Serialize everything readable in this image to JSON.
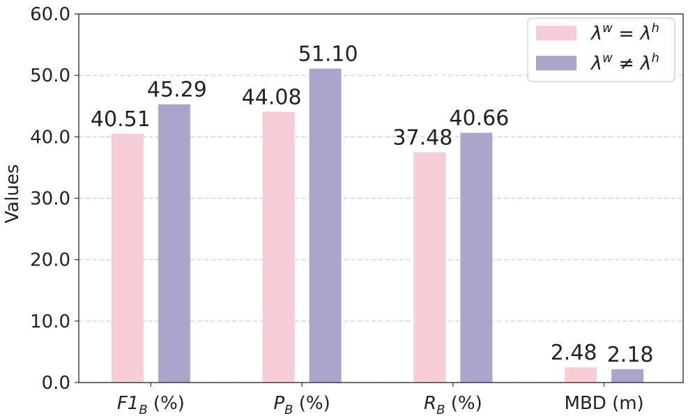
{
  "chart_data": {
    "type": "bar",
    "title": "",
    "xlabel": "",
    "ylabel": "Values",
    "ylim": [
      0,
      60
    ],
    "yticks": [
      "0.0",
      "10.0",
      "20.0",
      "30.0",
      "40.0",
      "50.0",
      "60.0"
    ],
    "categories": [
      {
        "main": "F1",
        "sub": "B",
        "unit": " (%)",
        "italic": true
      },
      {
        "main": "P",
        "sub": "B",
        "unit": " (%)",
        "italic": true
      },
      {
        "main": "R",
        "sub": "B",
        "unit": " (%)",
        "italic": true
      },
      {
        "main": "MBD (m)",
        "sub": "",
        "unit": "",
        "italic": false
      }
    ],
    "series": [
      {
        "name": "λw = λh",
        "name_parts": [
          "λ",
          "w",
          " = λ",
          "h"
        ],
        "color": "#f7ced8",
        "values": [
          40.51,
          44.08,
          37.48,
          2.48
        ],
        "labels": [
          "40.51",
          "44.08",
          "37.48",
          "2.48"
        ]
      },
      {
        "name": "λw ≠ λh",
        "name_parts": [
          "λ",
          "w",
          " ≠ λ",
          "h"
        ],
        "color": "#ada4cc",
        "values": [
          45.29,
          51.1,
          40.66,
          2.18
        ],
        "labels": [
          "45.29",
          "51.10",
          "40.66",
          "2.18"
        ]
      }
    ],
    "grid": "y-dashed",
    "legend_position": "top-right"
  }
}
